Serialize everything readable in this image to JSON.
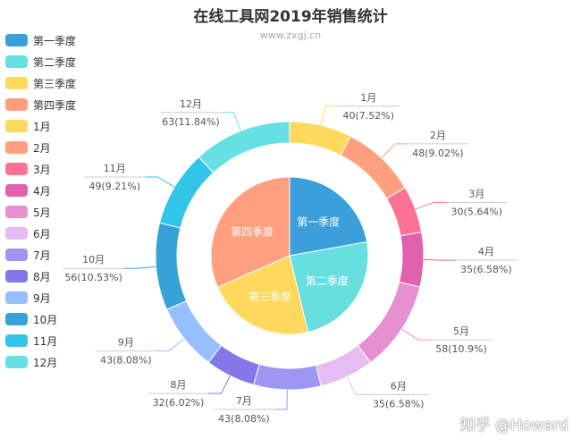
{
  "chart_data": {
    "type": "pie",
    "title": "在线工具网2019年销售统计",
    "subtitle": "www.zxgj.cn",
    "legend_position": "left",
    "inner": {
      "categories": [
        "第一季度",
        "第二季度",
        "第三季度",
        "第四季度"
      ],
      "values": [
        118,
        128,
        118,
        168
      ],
      "colors": [
        "#3a9fdb",
        "#67dfe0",
        "#ffd85c",
        "#ff9f7f"
      ]
    },
    "outer": {
      "categories": [
        "1月",
        "2月",
        "3月",
        "4月",
        "5月",
        "6月",
        "7月",
        "8月",
        "9月",
        "10月",
        "11月",
        "12月"
      ],
      "values": [
        40,
        48,
        30,
        35,
        58,
        35,
        43,
        32,
        43,
        56,
        49,
        63
      ],
      "value_labels": [
        "40(7.52%)",
        "48(9.02%)",
        "30(5.64%)",
        "35(6.58%)",
        "58(10.9%)",
        "35(6.58%)",
        "43(8.08%)",
        "32(6.02%)",
        "43(8.08%)",
        "56(10.53%)",
        "49(9.21%)",
        "63(11.84%)"
      ],
      "colors": [
        "#ffd85c",
        "#ff9f7f",
        "#fb7293",
        "#e062ae",
        "#e690d1",
        "#e7bcf3",
        "#9d96f5",
        "#8378ea",
        "#96bfff",
        "#37a2da",
        "#32c5e9",
        "#67e0e3"
      ]
    }
  },
  "watermark": "知乎 @Howard"
}
